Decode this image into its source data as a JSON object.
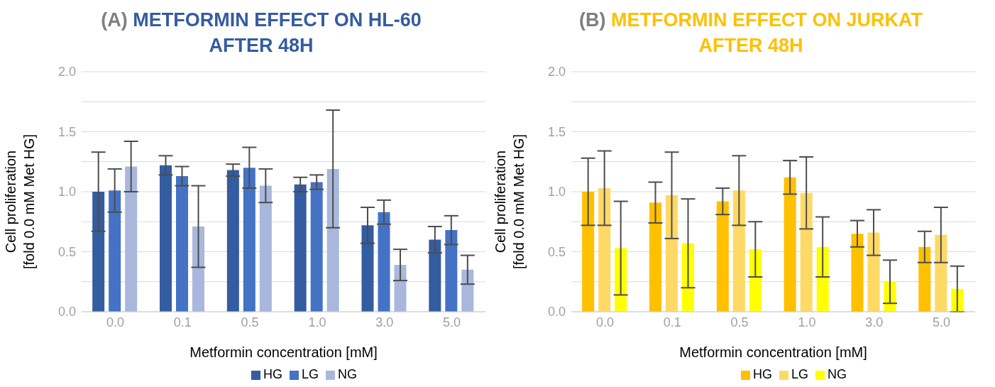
{
  "chart_data": [
    {
      "type": "bar",
      "title": "(A) METFORMIN EFFECT ON HL-60 AFTER 48H",
      "xlabel": "Metformin concentration [mM]",
      "ylabel": "Cell proliferation\n[fold 0.0 mM Met HG]",
      "categories": [
        "0.0",
        "0.1",
        "0.5",
        "1.0",
        "3.0",
        "5.0"
      ],
      "series": [
        {
          "name": "HG",
          "color": "#345ca0",
          "values": [
            1.0,
            1.22,
            1.18,
            1.06,
            0.72,
            0.6
          ],
          "errors": [
            0.33,
            0.08,
            0.05,
            0.06,
            0.15,
            0.11
          ]
        },
        {
          "name": "LG",
          "color": "#4472c4",
          "values": [
            1.01,
            1.13,
            1.2,
            1.08,
            0.83,
            0.68
          ],
          "errors": [
            0.18,
            0.08,
            0.17,
            0.06,
            0.1,
            0.12
          ]
        },
        {
          "name": "NG",
          "color": "#a9b7dc",
          "values": [
            1.21,
            0.71,
            1.05,
            1.19,
            0.39,
            0.35
          ],
          "errors": [
            0.21,
            0.34,
            0.14,
            0.49,
            0.13,
            0.12
          ]
        }
      ],
      "ylim": [
        0,
        2
      ],
      "yticks": [
        {
          "value": 0,
          "label": "0.0"
        },
        {
          "value": 0.25,
          "label": null
        },
        {
          "value": 0.5,
          "label": "0.5"
        },
        {
          "value": 0.75,
          "label": null
        },
        {
          "value": 1,
          "label": "1.0"
        },
        {
          "value": 1.25,
          "label": null
        },
        {
          "value": 1.5,
          "label": "1.5"
        },
        {
          "value": 1.75,
          "label": null
        },
        {
          "value": 2,
          "label": "2.0"
        }
      ],
      "grid": "y",
      "legend": "bottom"
    },
    {
      "type": "bar",
      "title": "(B) METFORMIN EFFECT ON JURKAT AFTER 48H",
      "xlabel": "Metformin concentration [mM]",
      "ylabel": "Cell proliferation\n[fold 0.0 mM Met HG]",
      "categories": [
        "0.0",
        "0.1",
        "0.5",
        "1.0",
        "3.0",
        "5.0"
      ],
      "series": [
        {
          "name": "HG",
          "color": "#ffc000",
          "values": [
            1.0,
            0.91,
            0.92,
            1.12,
            0.65,
            0.54
          ],
          "errors": [
            0.28,
            0.17,
            0.11,
            0.14,
            0.11,
            0.13
          ]
        },
        {
          "name": "LG",
          "color": "#ffd966",
          "values": [
            1.03,
            0.97,
            1.01,
            0.99,
            0.66,
            0.64
          ],
          "errors": [
            0.31,
            0.36,
            0.29,
            0.3,
            0.19,
            0.23
          ]
        },
        {
          "name": "NG",
          "color": "#ffff00",
          "values": [
            0.53,
            0.57,
            0.52,
            0.54,
            0.25,
            0.19
          ],
          "errors": [
            0.39,
            0.37,
            0.23,
            0.25,
            0.18,
            0.19
          ]
        }
      ],
      "ylim": [
        0,
        2
      ],
      "yticks": [
        {
          "value": 0,
          "label": "0.0"
        },
        {
          "value": 0.25,
          "label": null
        },
        {
          "value": 0.5,
          "label": "0.5"
        },
        {
          "value": 0.75,
          "label": null
        },
        {
          "value": 1,
          "label": "1.0"
        },
        {
          "value": 1.25,
          "label": null
        },
        {
          "value": 1.5,
          "label": "1.5"
        },
        {
          "value": 1.75,
          "label": null
        },
        {
          "value": 2,
          "label": "2.0"
        }
      ],
      "grid": "y",
      "legend": "bottom"
    }
  ]
}
